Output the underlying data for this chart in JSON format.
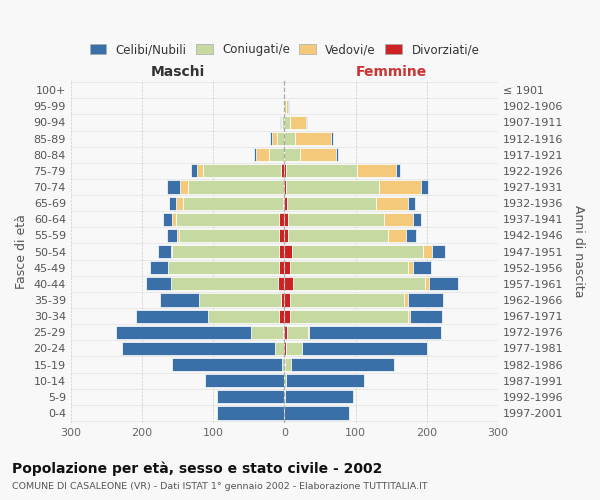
{
  "age_groups": [
    "0-4",
    "5-9",
    "10-14",
    "15-19",
    "20-24",
    "25-29",
    "30-34",
    "35-39",
    "40-44",
    "45-49",
    "50-54",
    "55-59",
    "60-64",
    "65-69",
    "70-74",
    "75-79",
    "80-84",
    "85-89",
    "90-94",
    "95-99",
    "100+"
  ],
  "birth_years": [
    "1997-2001",
    "1992-1996",
    "1987-1991",
    "1982-1986",
    "1977-1981",
    "1972-1976",
    "1967-1971",
    "1962-1966",
    "1957-1961",
    "1952-1956",
    "1947-1951",
    "1942-1946",
    "1937-1941",
    "1932-1936",
    "1927-1931",
    "1922-1926",
    "1917-1921",
    "1912-1916",
    "1907-1911",
    "1902-1906",
    "≤ 1901"
  ],
  "males_celibe": [
    95,
    95,
    110,
    155,
    215,
    190,
    100,
    55,
    35,
    25,
    18,
    14,
    12,
    10,
    18,
    8,
    3,
    2,
    1,
    0,
    0
  ],
  "males_coniugato": [
    0,
    0,
    1,
    3,
    12,
    45,
    100,
    115,
    150,
    155,
    150,
    140,
    145,
    140,
    135,
    110,
    22,
    10,
    3,
    0,
    0
  ],
  "males_vedovo": [
    0,
    0,
    0,
    0,
    0,
    0,
    0,
    0,
    1,
    1,
    2,
    3,
    5,
    10,
    12,
    8,
    18,
    8,
    2,
    0,
    0
  ],
  "males_divorziato": [
    0,
    0,
    0,
    0,
    1,
    2,
    8,
    5,
    9,
    8,
    8,
    8,
    8,
    2,
    0,
    5,
    0,
    0,
    0,
    0,
    0
  ],
  "females_nubile": [
    90,
    95,
    110,
    145,
    175,
    185,
    45,
    50,
    40,
    25,
    18,
    15,
    12,
    10,
    10,
    5,
    3,
    3,
    2,
    1,
    0
  ],
  "females_coniugata": [
    0,
    1,
    2,
    8,
    22,
    30,
    165,
    160,
    185,
    165,
    185,
    140,
    135,
    125,
    130,
    100,
    22,
    15,
    8,
    2,
    0
  ],
  "females_vedova": [
    0,
    0,
    0,
    0,
    1,
    2,
    3,
    5,
    6,
    8,
    12,
    25,
    40,
    45,
    60,
    55,
    50,
    50,
    22,
    3,
    1
  ],
  "females_divorziata": [
    0,
    0,
    0,
    1,
    2,
    3,
    8,
    8,
    12,
    8,
    10,
    5,
    5,
    3,
    2,
    2,
    0,
    0,
    0,
    0,
    0
  ],
  "colors": {
    "celibe": "#3a6fa8",
    "coniugato": "#c5d9a0",
    "vedovo": "#f5c97a",
    "divorziato": "#cc2222"
  },
  "xlim": 300,
  "title": "Popolazione per età, sesso e stato civile - 2002",
  "subtitle": "COMUNE DI CASALEONE (VR) - Dati ISTAT 1° gennaio 2002 - Elaborazione TUTTITALIA.IT",
  "label_maschi": "Maschi",
  "label_femmine": "Femmine",
  "ylabel_left": "Fasce di età",
  "ylabel_right": "Anni di nascita",
  "legend_labels": [
    "Celibi/Nubili",
    "Coniugati/e",
    "Vedovi/e",
    "Divorziati/e"
  ],
  "bg_color": "#f8f8f8",
  "grid_color": "#cccccc"
}
